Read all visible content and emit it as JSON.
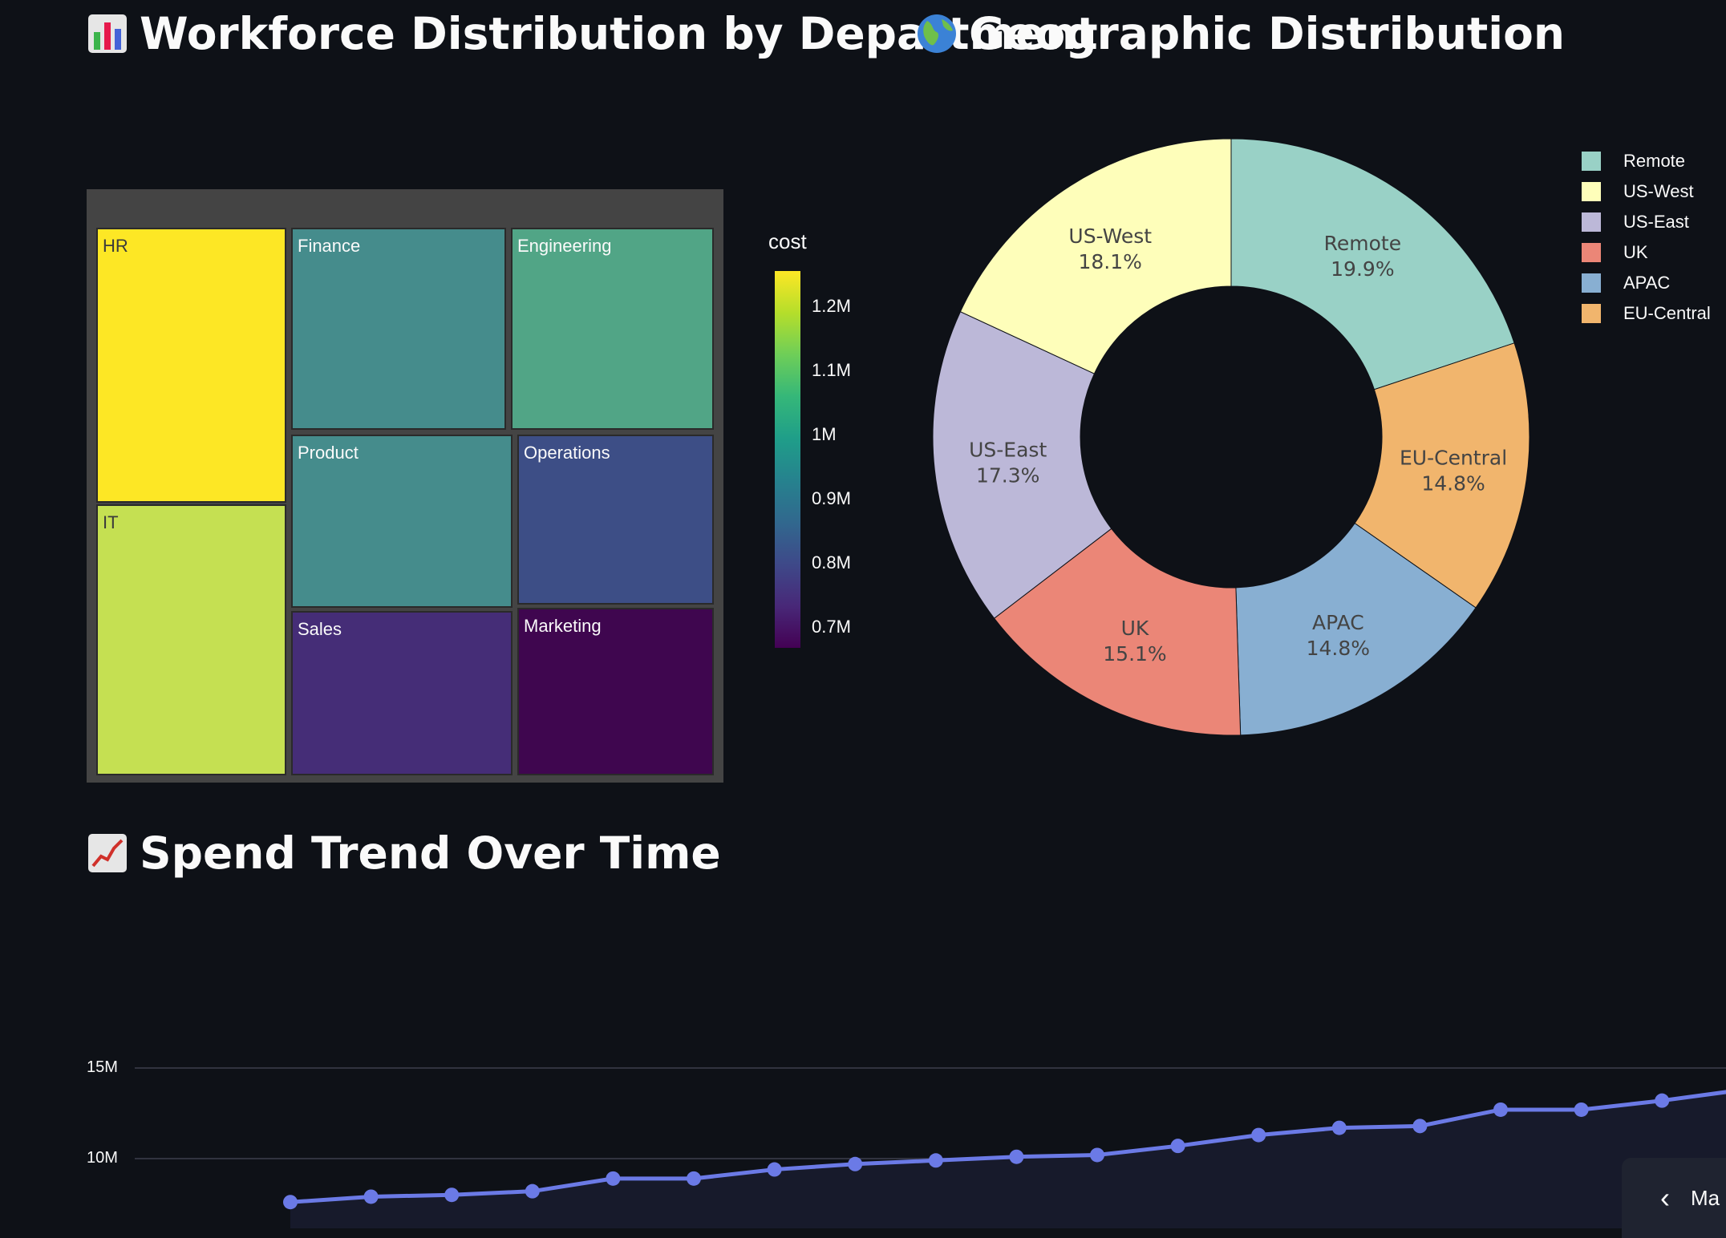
{
  "headings": {
    "workforce": "Workforce Distribution by Department",
    "geo": "Geographic Distribution",
    "spend": "Spend Trend Over Time"
  },
  "icons": {
    "workforce": "bar-chart-icon",
    "geo": "globe-icon",
    "spend": "trend-up-icon",
    "collapse": "chevron-left-icon"
  },
  "chart_data": [
    {
      "type": "treemap",
      "colorbar_title": "cost",
      "colorbar_ticks": [
        "1.2M",
        "1.1M",
        "1M",
        "0.9M",
        "0.8M",
        "0.7M"
      ],
      "colorbar_range": [
        0.67,
        1.26
      ],
      "tiles": [
        {
          "label": "HR",
          "cost": 1.26,
          "color": "#fde725"
        },
        {
          "label": "IT",
          "cost": 1.16,
          "color": "#c5e052"
        },
        {
          "label": "Finance",
          "cost": 0.93,
          "color": "#458c8c"
        },
        {
          "label": "Engineering",
          "cost": 1.02,
          "color": "#51a586"
        },
        {
          "label": "Product",
          "cost": 0.93,
          "color": "#458c8c"
        },
        {
          "label": "Operations",
          "cost": 0.81,
          "color": "#3d4e86"
        },
        {
          "label": "Sales",
          "cost": 0.74,
          "color": "#452d77"
        },
        {
          "label": "Marketing",
          "cost": 0.67,
          "color": "#3f064f"
        }
      ]
    },
    {
      "type": "pie",
      "hole": true,
      "legend_position": "top-right",
      "slices": [
        {
          "label": "Remote",
          "pct": 19.9,
          "pct_text": "19.9%",
          "color": "#99d1c6"
        },
        {
          "label": "EU-Central",
          "pct": 14.8,
          "pct_text": "14.8%",
          "color": "#f1b56d"
        },
        {
          "label": "APAC",
          "pct": 14.8,
          "pct_text": "14.8%",
          "color": "#88afd2"
        },
        {
          "label": "UK",
          "pct": 15.1,
          "pct_text": "15.1%",
          "color": "#eb8677"
        },
        {
          "label": "US-East",
          "pct": 17.3,
          "pct_text": "17.3%",
          "color": "#bcb8d8"
        },
        {
          "label": "US-West",
          "pct": 18.1,
          "pct_text": "18.1%",
          "color": "#fefeba"
        }
      ],
      "legend": [
        "Remote",
        "US-West",
        "US-East",
        "UK",
        "APAC",
        "EU-Central"
      ]
    },
    {
      "type": "area",
      "y_ticks": [
        {
          "label": "15M",
          "value": 15
        },
        {
          "label": "10M",
          "value": 10
        }
      ],
      "ylim_visible": [
        6.2,
        15
      ],
      "line_color": "#6b7ae6",
      "fill_color": "#171a2b",
      "points": [
        7.6,
        7.9,
        8.0,
        8.2,
        8.9,
        8.9,
        9.4,
        9.7,
        9.9,
        10.1,
        10.2,
        10.7,
        11.3,
        11.7,
        11.8,
        12.7,
        12.7,
        13.2,
        13.8
      ]
    }
  ],
  "sidebar_tab": {
    "text": "Ma"
  }
}
